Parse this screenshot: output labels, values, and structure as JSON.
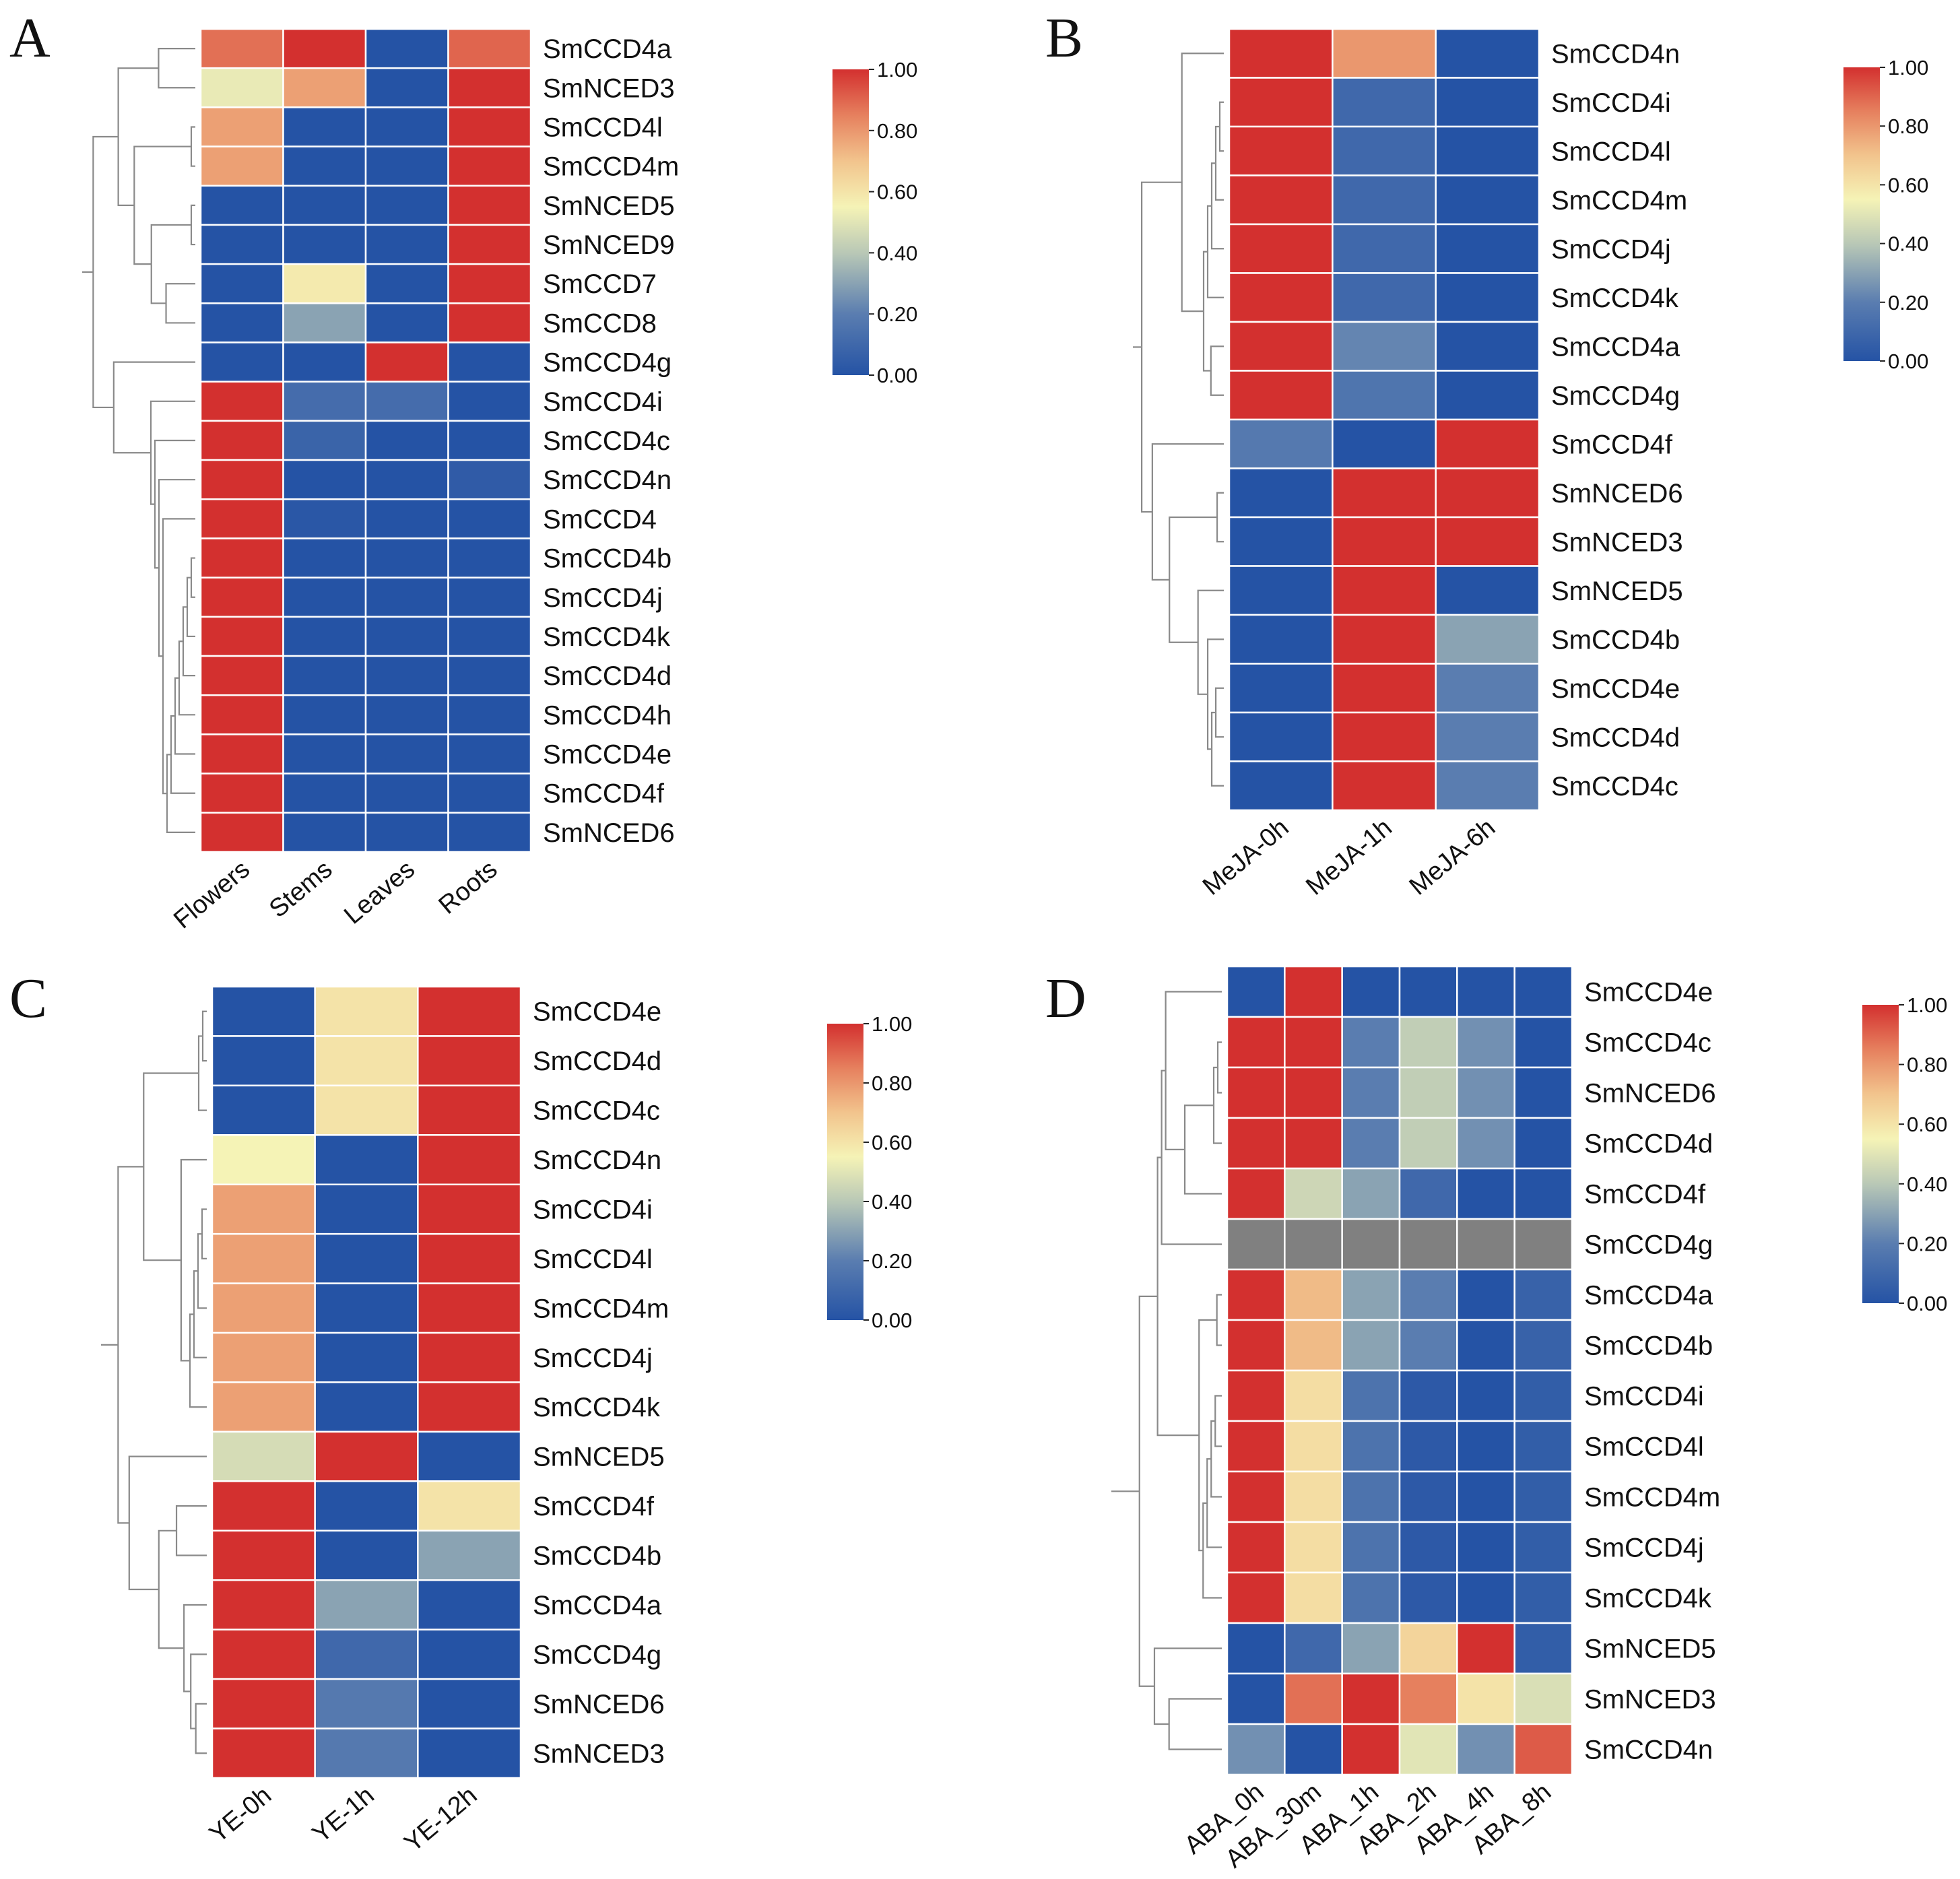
{
  "chart_data": [
    {
      "type": "heatmap",
      "panel": "A",
      "columns": [
        "Flowers",
        "Stems",
        "Leaves",
        "Roots"
      ],
      "rows": [
        "SmCCD4a",
        "SmNCED3",
        "SmCCD4l",
        "SmCCD4m",
        "SmNCED5",
        "SmNCED9",
        "SmCCD7",
        "SmCCD8",
        "SmCCD4g",
        "SmCCD4i",
        "SmCCD4c",
        "SmCCD4n",
        "SmCCD4",
        "SmCCD4b",
        "SmCCD4j",
        "SmCCD4k",
        "SmCCD4d",
        "SmCCD4h",
        "SmCCD4e",
        "SmCCD4f",
        "SmNCED6"
      ],
      "values": [
        [
          0.88,
          1.0,
          0.0,
          0.9
        ],
        [
          0.52,
          0.78,
          0.0,
          1.0
        ],
        [
          0.78,
          0.0,
          0.0,
          1.0
        ],
        [
          0.78,
          0.0,
          0.0,
          1.0
        ],
        [
          0.0,
          0.0,
          0.0,
          1.0
        ],
        [
          0.0,
          0.0,
          0.0,
          1.0
        ],
        [
          0.0,
          0.58,
          0.0,
          1.0
        ],
        [
          0.0,
          0.3,
          0.0,
          1.0
        ],
        [
          0.0,
          0.0,
          1.0,
          0.0
        ],
        [
          1.0,
          0.12,
          0.12,
          0.0
        ],
        [
          1.0,
          0.08,
          0.0,
          0.0
        ],
        [
          1.0,
          0.0,
          0.0,
          0.04
        ],
        [
          1.0,
          0.02,
          0.0,
          0.0
        ],
        [
          1.0,
          0.0,
          0.0,
          0.0
        ],
        [
          1.0,
          0.0,
          0.0,
          0.0
        ],
        [
          1.0,
          0.0,
          0.0,
          0.0
        ],
        [
          1.0,
          0.0,
          0.0,
          0.0
        ],
        [
          1.0,
          0.0,
          0.0,
          0.0
        ],
        [
          1.0,
          0.0,
          0.0,
          0.0
        ],
        [
          1.0,
          0.0,
          0.0,
          0.0
        ],
        [
          1.0,
          0.0,
          0.0,
          0.0
        ]
      ],
      "color_scale": {
        "min": 0.0,
        "max": 1.0,
        "ticks": [
          "0.00",
          "0.20",
          "0.40",
          "0.60",
          "0.80",
          "1.00"
        ]
      },
      "dendrogram": "rows"
    },
    {
      "type": "heatmap",
      "panel": "B",
      "columns": [
        "MeJA-0h",
        "MeJA-1h",
        "MeJA-6h"
      ],
      "rows": [
        "SmCCD4n",
        "SmCCD4i",
        "SmCCD4l",
        "SmCCD4m",
        "SmCCD4j",
        "SmCCD4k",
        "SmCCD4a",
        "SmCCD4g",
        "SmCCD4f",
        "SmNCED6",
        "SmNCED3",
        "SmNCED5",
        "SmCCD4b",
        "SmCCD4e",
        "SmCCD4d",
        "SmCCD4c"
      ],
      "values": [
        [
          1.0,
          0.8,
          0.0
        ],
        [
          1.0,
          0.1,
          0.0
        ],
        [
          1.0,
          0.1,
          0.0
        ],
        [
          1.0,
          0.1,
          0.0
        ],
        [
          1.0,
          0.1,
          0.0
        ],
        [
          1.0,
          0.1,
          0.0
        ],
        [
          1.0,
          0.22,
          0.0
        ],
        [
          1.0,
          0.16,
          0.0
        ],
        [
          0.18,
          0.0,
          1.0
        ],
        [
          0.0,
          1.0,
          1.0
        ],
        [
          0.0,
          1.0,
          1.0
        ],
        [
          0.0,
          1.0,
          0.0
        ],
        [
          0.0,
          1.0,
          0.3
        ],
        [
          0.0,
          1.0,
          0.2
        ],
        [
          0.0,
          1.0,
          0.2
        ],
        [
          0.0,
          1.0,
          0.2
        ]
      ],
      "color_scale": {
        "min": 0.0,
        "max": 1.0,
        "ticks": [
          "0.00",
          "0.20",
          "0.40",
          "0.60",
          "0.80",
          "1.00"
        ]
      },
      "dendrogram": "rows"
    },
    {
      "type": "heatmap",
      "panel": "C",
      "columns": [
        "YE-0h",
        "YE-1h",
        "YE-12h"
      ],
      "rows": [
        "SmCCD4e",
        "SmCCD4d",
        "SmCCD4c",
        "SmCCD4n",
        "SmCCD4i",
        "SmCCD4l",
        "SmCCD4m",
        "SmCCD4j",
        "SmCCD4k",
        "SmNCED5",
        "SmCCD4f",
        "SmCCD4b",
        "SmCCD4a",
        "SmCCD4g",
        "SmNCED6",
        "SmNCED3"
      ],
      "values": [
        [
          0.0,
          0.6,
          1.0
        ],
        [
          0.0,
          0.6,
          1.0
        ],
        [
          0.0,
          0.6,
          1.0
        ],
        [
          0.55,
          0.0,
          1.0
        ],
        [
          0.78,
          0.0,
          1.0
        ],
        [
          0.78,
          0.0,
          1.0
        ],
        [
          0.78,
          0.0,
          1.0
        ],
        [
          0.78,
          0.0,
          1.0
        ],
        [
          0.78,
          0.0,
          1.0
        ],
        [
          0.47,
          1.0,
          0.0
        ],
        [
          1.0,
          0.0,
          0.6
        ],
        [
          1.0,
          0.0,
          0.3
        ],
        [
          1.0,
          0.3,
          0.0
        ],
        [
          1.0,
          0.1,
          0.0
        ],
        [
          1.0,
          0.18,
          0.0
        ],
        [
          1.0,
          0.18,
          0.0
        ]
      ],
      "color_scale": {
        "min": 0.0,
        "max": 1.0,
        "ticks": [
          "0.00",
          "0.20",
          "0.40",
          "0.60",
          "0.80",
          "1.00"
        ]
      },
      "dendrogram": "rows"
    },
    {
      "type": "heatmap",
      "panel": "D",
      "columns": [
        "ABA_0h",
        "ABA_30m",
        "ABA_1h",
        "ABA_2h",
        "ABA_4h",
        "ABA_8h"
      ],
      "rows": [
        "SmCCD4e",
        "SmCCD4c",
        "SmNCED6",
        "SmCCD4d",
        "SmCCD4f",
        "SmCCD4g",
        "SmCCD4a",
        "SmCCD4b",
        "SmCCD4i",
        "SmCCD4l",
        "SmCCD4m",
        "SmCCD4j",
        "SmCCD4k",
        "SmNCED5",
        "SmNCED3",
        "SmCCD4n"
      ],
      "values": [
        [
          0.0,
          1.0,
          0.0,
          0.0,
          0.0,
          0.0
        ],
        [
          1.0,
          1.0,
          0.2,
          0.42,
          0.25,
          0.0
        ],
        [
          1.0,
          1.0,
          0.2,
          0.42,
          0.25,
          0.0
        ],
        [
          1.0,
          1.0,
          0.2,
          0.42,
          0.25,
          0.0
        ],
        [
          1.0,
          0.45,
          0.3,
          0.1,
          0.0,
          0.0
        ],
        [
          null,
          null,
          null,
          null,
          null,
          null
        ],
        [
          1.0,
          0.72,
          0.3,
          0.2,
          0.0,
          0.07
        ],
        [
          1.0,
          0.72,
          0.3,
          0.2,
          0.0,
          0.07
        ],
        [
          1.0,
          0.62,
          0.15,
          0.03,
          0.0,
          0.05
        ],
        [
          1.0,
          0.62,
          0.15,
          0.03,
          0.0,
          0.05
        ],
        [
          1.0,
          0.62,
          0.15,
          0.03,
          0.0,
          0.05
        ],
        [
          1.0,
          0.62,
          0.15,
          0.03,
          0.0,
          0.05
        ],
        [
          1.0,
          0.62,
          0.15,
          0.03,
          0.0,
          0.05
        ],
        [
          0.0,
          0.1,
          0.3,
          0.65,
          1.0,
          0.05
        ],
        [
          0.0,
          0.88,
          1.0,
          0.85,
          0.6,
          0.48
        ],
        [
          0.25,
          0.0,
          1.0,
          0.5,
          0.25,
          0.92
        ]
      ],
      "color_scale": {
        "min": 0.0,
        "max": 1.0,
        "ticks": [
          "0.00",
          "0.20",
          "0.40",
          "0.60",
          "0.80",
          "1.00"
        ]
      },
      "missing_color": "#808080",
      "dendrogram": "rows"
    }
  ],
  "palette": {
    "low": "#2553a5",
    "mid_low": "#7a96b0",
    "mid": "#f5f3b6",
    "mid_high": "#f2c48d",
    "high": "#d3302f"
  }
}
